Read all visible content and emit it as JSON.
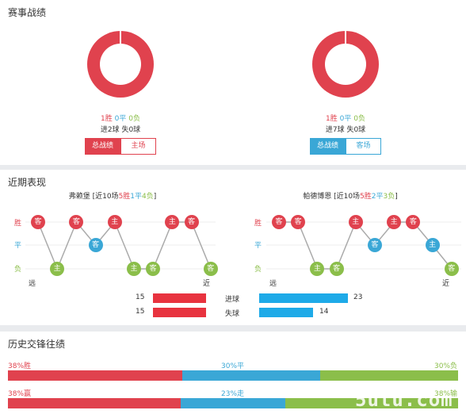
{
  "sections": {
    "record": "赛事战绩",
    "recent": "近期表现",
    "history": "历史交锋往绩"
  },
  "left_team": {
    "record": {
      "w": "1胜",
      "d": "0平",
      "l": "0负",
      "goals": "进2球",
      "conceded": "失0球"
    },
    "tabs": {
      "overall": "总战绩",
      "venue": "主场"
    },
    "recent": {
      "name": "弗赖堡",
      "summary_prefix": " [近10场",
      "w": "5胜",
      "d": "1平",
      "l": "4负",
      "summary_suffix": "]",
      "games": [
        {
          "r": "w",
          "v": "客"
        },
        {
          "r": "l",
          "v": "主"
        },
        {
          "r": "w",
          "v": "客"
        },
        {
          "r": "d",
          "v": "客"
        },
        {
          "r": "w",
          "v": "主"
        },
        {
          "r": "l",
          "v": "主"
        },
        {
          "r": "l",
          "v": "客"
        },
        {
          "r": "w",
          "v": "主"
        },
        {
          "r": "w",
          "v": "客"
        },
        {
          "r": "l",
          "v": "客"
        }
      ]
    }
  },
  "right_team": {
    "record": {
      "w": "1胜",
      "d": "0平",
      "l": "0负",
      "goals": "进7球",
      "conceded": "失0球"
    },
    "tabs": {
      "overall": "总战绩",
      "venue": "客场"
    },
    "recent": {
      "name": "帕德博恩",
      "summary_prefix": " [近10场",
      "w": "5胜",
      "d": "2平",
      "l": "3负",
      "summary_suffix": "]",
      "games": [
        {
          "r": "w",
          "v": "客"
        },
        {
          "r": "w",
          "v": "客"
        },
        {
          "r": "l",
          "v": "主"
        },
        {
          "r": "l",
          "v": "客"
        },
        {
          "r": "w",
          "v": "主"
        },
        {
          "r": "d",
          "v": "客"
        },
        {
          "r": "w",
          "v": "主"
        },
        {
          "r": "w",
          "v": "客"
        },
        {
          "r": "d",
          "v": "主"
        },
        {
          "r": "l",
          "v": "客"
        }
      ]
    }
  },
  "row_labels": {
    "w": "胜",
    "d": "平",
    "l": "负",
    "far": "远",
    "near": "近"
  },
  "goals_compare": {
    "scored_label": "进球",
    "conceded_label": "失球",
    "left_scored": 15,
    "right_scored": 23,
    "left_conceded": 15,
    "right_conceded": 14
  },
  "history": {
    "row1": {
      "left": "38%胜",
      "mid": "30%平",
      "right": "30%负",
      "fractions": [
        0.38,
        0.3,
        0.3
      ]
    },
    "row2": {
      "left": "38%赢",
      "mid": "23%走",
      "right": "38%输",
      "fractions": [
        0.38,
        0.23,
        0.38
      ]
    }
  },
  "watermark": "5utu.com",
  "colors": {
    "win": "#e0424e",
    "draw": "#3aa7d6",
    "loss": "#8bbe4a"
  }
}
